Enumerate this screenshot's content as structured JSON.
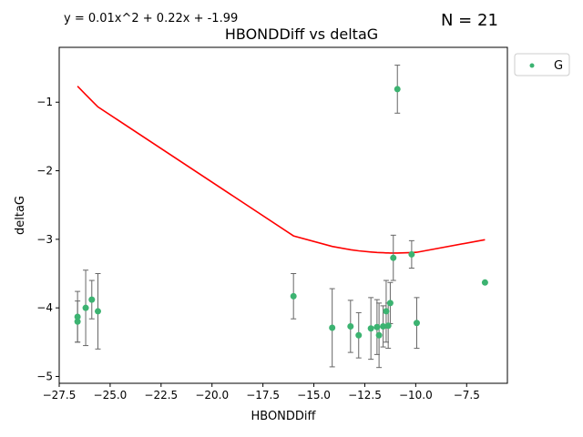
{
  "equation_label": "y = 0.01x^2 + 0.22x + -1.99",
  "count_label": "N = 21",
  "colors": {
    "points": "#3cb371",
    "fit_line": "#ff0000",
    "error_bars": "#666666"
  },
  "chart_data": {
    "type": "scatter",
    "title": "HBONDDiff vs deltaG",
    "xlabel": "HBONDDiff",
    "ylabel": "deltaG",
    "xlim": [
      -27.5,
      -5.5
    ],
    "ylim": [
      -5.1,
      -0.2
    ],
    "xticks": [
      -27.5,
      -25.0,
      -22.5,
      -20.0,
      -17.5,
      -15.0,
      -12.5,
      -10.0,
      -7.5
    ],
    "xtick_labels": [
      "−27.5",
      "−25.0",
      "−22.5",
      "−20.0",
      "−17.5",
      "−15.0",
      "−12.5",
      "−10.0",
      "−7.5"
    ],
    "yticks": [
      -5,
      -4,
      -3,
      -2,
      -1
    ],
    "ytick_labels": [
      "−5",
      "−4",
      "−3",
      "−2",
      "−1"
    ],
    "grid": false,
    "legend": {
      "position": "outside-top-right",
      "entries": [
        "G"
      ]
    },
    "series": [
      {
        "name": "G",
        "points": [
          {
            "x": -26.6,
            "y": -4.13,
            "err": 0.37
          },
          {
            "x": -26.6,
            "y": -4.2,
            "err": 0.3
          },
          {
            "x": -26.2,
            "y": -4.0,
            "err": 0.55
          },
          {
            "x": -25.9,
            "y": -3.88,
            "err": 0.28
          },
          {
            "x": -25.6,
            "y": -4.05,
            "err": 0.55
          },
          {
            "x": -16.0,
            "y": -3.83,
            "err": 0.33
          },
          {
            "x": -14.1,
            "y": -4.29,
            "err": 0.57
          },
          {
            "x": -13.2,
            "y": -4.27,
            "err": 0.38
          },
          {
            "x": -12.8,
            "y": -4.4,
            "err": 0.33
          },
          {
            "x": -12.2,
            "y": -4.3,
            "err": 0.45
          },
          {
            "x": -11.9,
            "y": -4.28,
            "err": 0.4
          },
          {
            "x": -11.8,
            "y": -4.4,
            "err": 0.47
          },
          {
            "x": -11.6,
            "y": -4.27,
            "err": 0.3
          },
          {
            "x": -11.45,
            "y": -4.05,
            "err": 0.45
          },
          {
            "x": -11.35,
            "y": -4.26,
            "err": 0.33
          },
          {
            "x": -11.25,
            "y": -3.93,
            "err": 0.3
          },
          {
            "x": -11.1,
            "y": -3.27,
            "err": 0.33
          },
          {
            "x": -10.9,
            "y": -0.81,
            "err": 0.35
          },
          {
            "x": -10.2,
            "y": -3.22,
            "err": 0.2
          },
          {
            "x": -9.95,
            "y": -4.22,
            "err": 0.37
          },
          {
            "x": -6.6,
            "y": -3.63,
            "err": 0.0
          }
        ]
      }
    ],
    "fit": {
      "type": "polynomial",
      "coefficients": [
        0.01,
        0.22,
        -1.99
      ]
    }
  }
}
